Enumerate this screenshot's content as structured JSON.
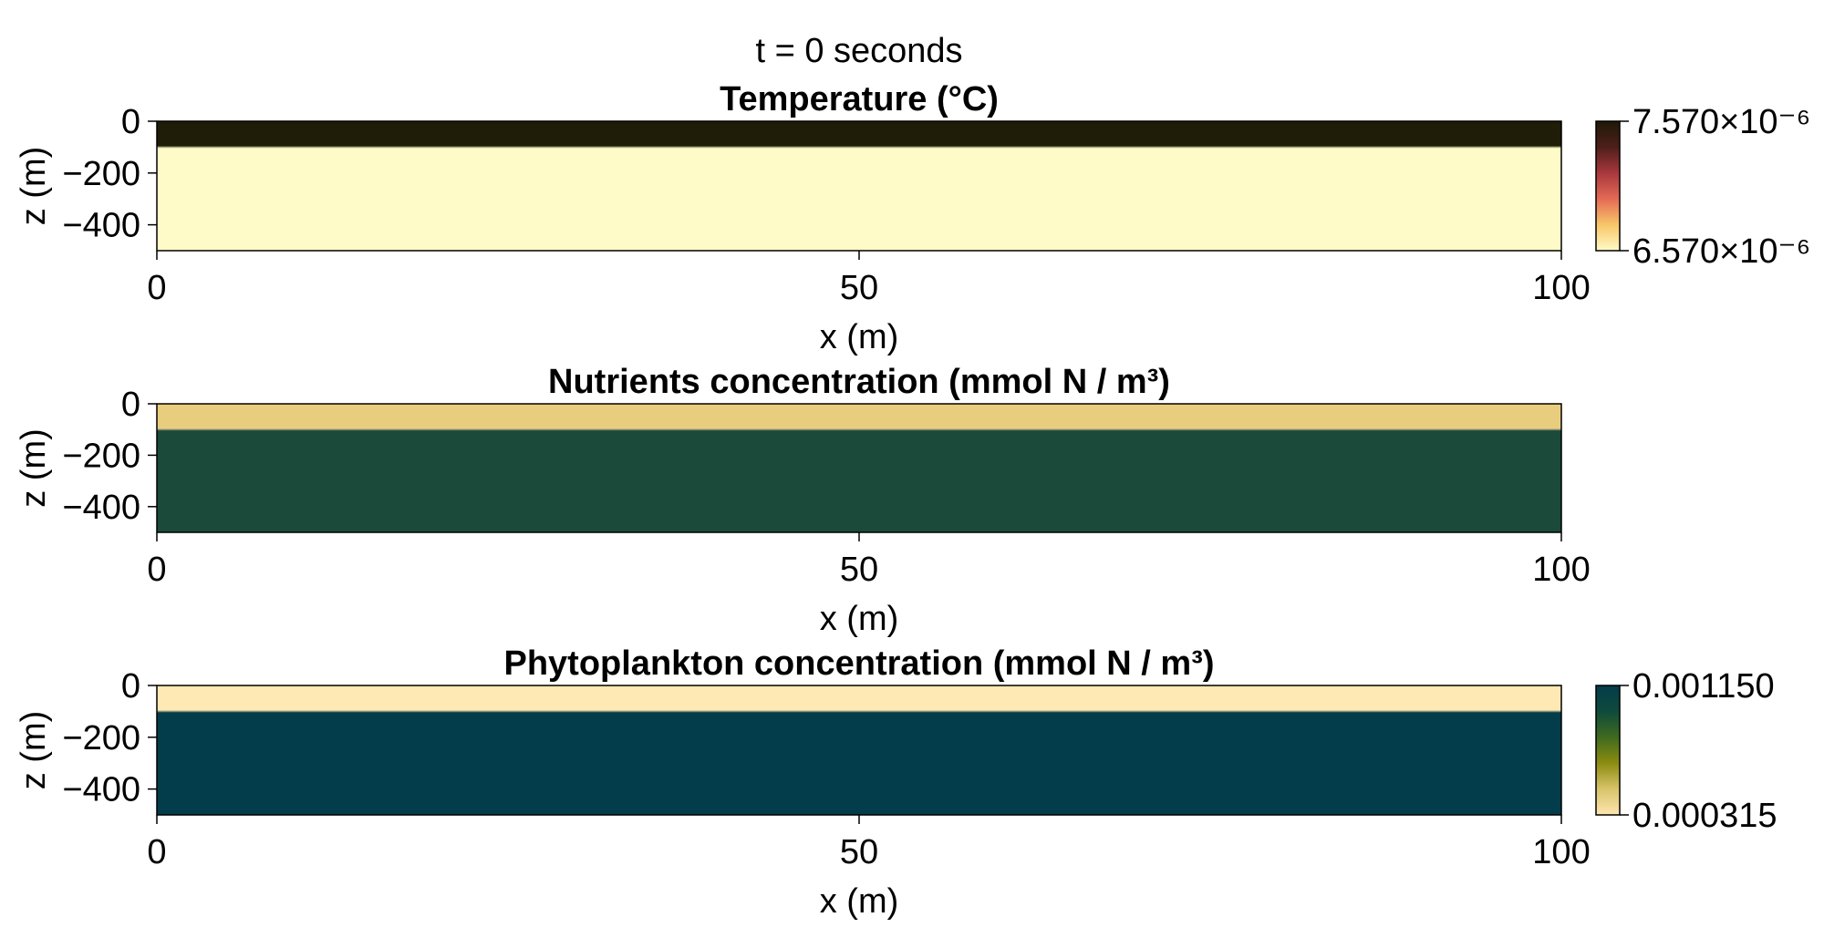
{
  "figure": {
    "suptitle": "t = 0 seconds"
  },
  "chart_data": [
    {
      "type": "heatmap",
      "title": "Temperature (°C)",
      "xlabel": "x (m)",
      "ylabel": "z (m)",
      "xlim": [
        0,
        100
      ],
      "ylim": [
        -500,
        0
      ],
      "xticks": [
        0,
        50,
        100
      ],
      "xticklabels": [
        "0",
        "50",
        "100"
      ],
      "yticks": [
        0,
        -200,
        -400
      ],
      "yticklabels": [
        "0",
        "−200",
        "−400"
      ],
      "layers": [
        {
          "z_top": 0,
          "z_bottom": -100,
          "color": "#1f1d08",
          "value": "7.570×10⁻⁶"
        },
        {
          "z_top": -100,
          "z_bottom": -500,
          "color": "#fffbc8",
          "value": "6.570×10⁻⁶"
        }
      ],
      "colorbar": {
        "present": true,
        "max_label": "7.570×10⁻⁶",
        "min_label": "6.570×10⁻⁶",
        "stops": [
          "#fffac6",
          "#f7c768",
          "#e46a55",
          "#a8383d",
          "#4e1e1b",
          "#1e1a08"
        ]
      }
    },
    {
      "type": "heatmap",
      "title": "Nutrients concentration (mmol N / m³)",
      "xlabel": "x (m)",
      "ylabel": "z (m)",
      "xlim": [
        0,
        100
      ],
      "ylim": [
        -500,
        0
      ],
      "xticks": [
        0,
        50,
        100
      ],
      "xticklabels": [
        "0",
        "50",
        "100"
      ],
      "yticks": [
        0,
        -200,
        -400
      ],
      "yticklabels": [
        "0",
        "−200",
        "−400"
      ],
      "layers": [
        {
          "z_top": 0,
          "z_bottom": -100,
          "color": "#e9cd7e"
        },
        {
          "z_top": -100,
          "z_bottom": -500,
          "color": "#1b4a3b"
        }
      ],
      "colorbar": {
        "present": false
      }
    },
    {
      "type": "heatmap",
      "title": "Phytoplankton concentration (mmol N / m³)",
      "xlabel": "x (m)",
      "ylabel": "z (m)",
      "xlim": [
        0,
        100
      ],
      "ylim": [
        -500,
        0
      ],
      "xticks": [
        0,
        50,
        100
      ],
      "xticklabels": [
        "0",
        "50",
        "100"
      ],
      "yticks": [
        0,
        -200,
        -400
      ],
      "yticklabels": [
        "0",
        "−200",
        "−400"
      ],
      "layers": [
        {
          "z_top": 0,
          "z_bottom": -100,
          "color": "#fee8b3",
          "value": "0.000315"
        },
        {
          "z_top": -100,
          "z_bottom": -500,
          "color": "#033c4a",
          "value": "0.001150"
        }
      ],
      "colorbar": {
        "present": true,
        "max_label": "0.001150",
        "min_label": "0.000315",
        "stops": [
          "#fee6b0",
          "#d8c46a",
          "#8c8c10",
          "#3f6a1e",
          "#0f4a3c",
          "#033c4a"
        ]
      }
    }
  ]
}
